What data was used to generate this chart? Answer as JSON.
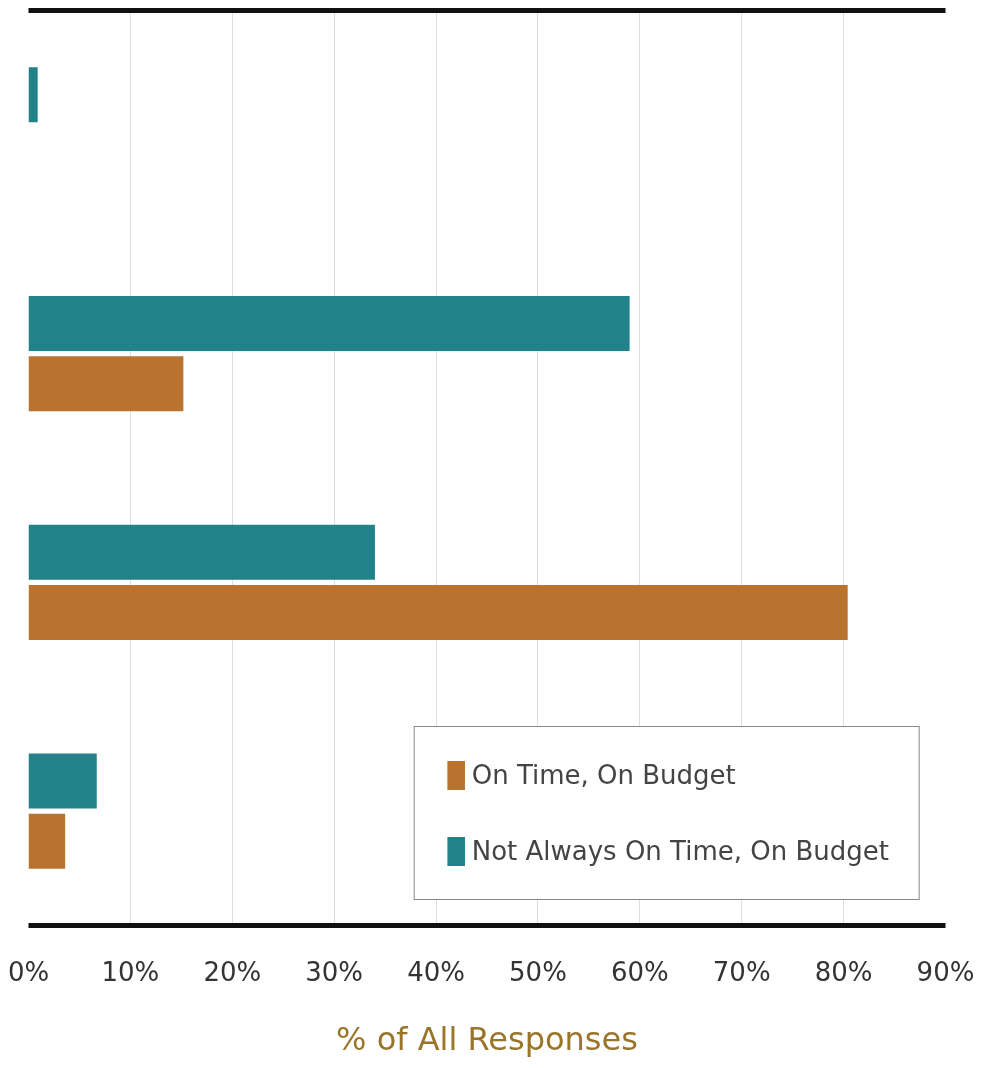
{
  "chart_data": {
    "type": "bar",
    "orientation": "horizontal",
    "categories": [
      null,
      null,
      null,
      null
    ],
    "series": [
      {
        "name": "On Time, On Budget",
        "color": "#b8732e",
        "values": [
          0,
          15.2,
          80.4,
          3.6
        ]
      },
      {
        "name": "Not Always On Time, On Budget",
        "color": "#22828a",
        "values": [
          0.9,
          59,
          34,
          6.7
        ]
      }
    ],
    "xlabel": "% of All Responses",
    "xlim": [
      0,
      90
    ],
    "xticks": [
      {
        "value": 0,
        "label": "0%"
      },
      {
        "value": 10,
        "label": "10%"
      },
      {
        "value": 20,
        "label": "20%"
      },
      {
        "value": 30,
        "label": "30%"
      },
      {
        "value": 40,
        "label": "40%"
      },
      {
        "value": 50,
        "label": "50%"
      },
      {
        "value": 60,
        "label": "60%"
      },
      {
        "value": 70,
        "label": "70%"
      },
      {
        "value": 80,
        "label": "80%"
      },
      {
        "value": 90,
        "label": "90%"
      }
    ],
    "grid": "x",
    "legend": "bottom right",
    "tick_labels": "x"
  }
}
